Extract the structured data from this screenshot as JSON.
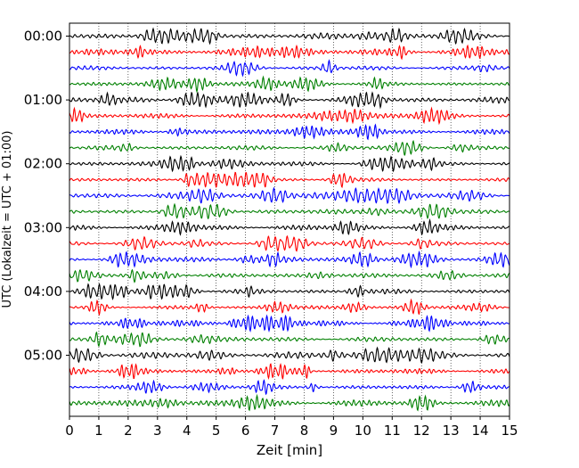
{
  "chart_data": {
    "type": "line",
    "subtype": "helicorder",
    "title": "",
    "xlabel": "Zeit  [min]",
    "ylabel": "UTC (Lokalzeit = UTC + 01:00)",
    "xlim": [
      0,
      15
    ],
    "x_ticks": [
      "0",
      "1",
      "2",
      "3",
      "4",
      "5",
      "6",
      "7",
      "8",
      "9",
      "10",
      "11",
      "12",
      "13",
      "14",
      "15"
    ],
    "y_tick_labels": [
      "00:00",
      "01:00",
      "02:00",
      "03:00",
      "04:00",
      "05:00"
    ],
    "traces_per_hour": 4,
    "trace_count": 24,
    "trace_colors": [
      "#000000",
      "#ff0000",
      "#0000ff",
      "#008000"
    ],
    "vertical_grid": "dotted, every 1 min"
  }
}
